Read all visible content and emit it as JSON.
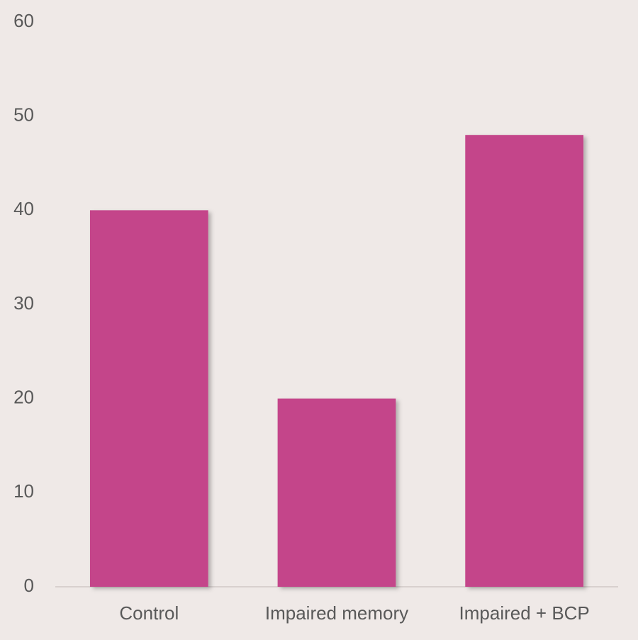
{
  "chart_data": {
    "type": "bar",
    "categories": [
      "Control",
      "Impaired memory",
      "Impaired + BCP"
    ],
    "values": [
      40,
      20,
      48
    ],
    "color": "#c4448a",
    "ylim": [
      0,
      60
    ],
    "yticks": [
      0,
      10,
      20,
      30,
      40,
      50,
      60
    ],
    "grid": false
  }
}
